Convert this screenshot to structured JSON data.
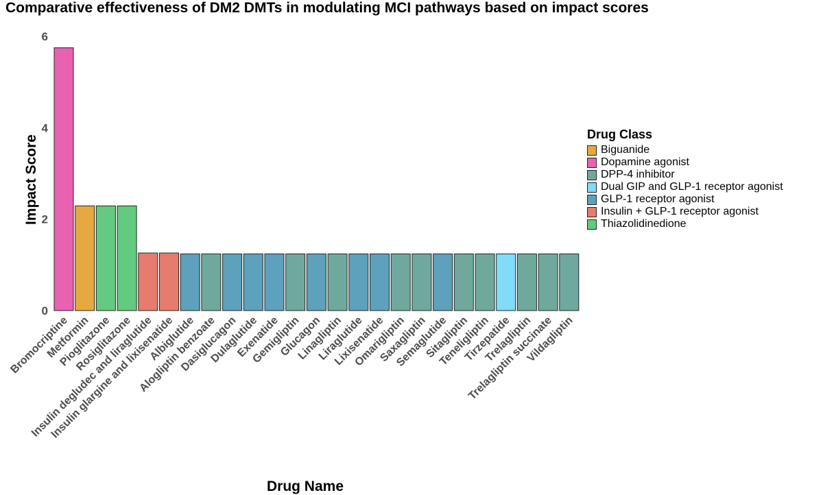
{
  "chart_data": {
    "type": "bar",
    "title": "Comparative effectiveness of DM2 DMTs in modulating MCI pathways based on impact scores",
    "xlabel": "Drug Name",
    "ylabel": "Impact Score",
    "ylim": [
      0,
      6
    ],
    "yticks": [
      "0",
      "2",
      "4",
      "6"
    ],
    "grid": false,
    "legend_position": "right",
    "legend_title": "Drug Class",
    "classes": [
      {
        "name": "Biguanide",
        "color": "#E5A93F"
      },
      {
        "name": "Dopamine agonist",
        "color": "#E962B1"
      },
      {
        "name": "DPP-4 inhibitor",
        "color": "#6FA99E"
      },
      {
        "name": "Dual GIP and GLP-1 receptor agonist",
        "color": "#80DCF7"
      },
      {
        "name": "GLP-1 receptor agonist",
        "color": "#5DA1BC"
      },
      {
        "name": "Insulin + GLP-1 receptor agonist",
        "color": "#E57C6D"
      },
      {
        "name": "Thiazolidinedione",
        "color": "#63CA7F"
      }
    ],
    "categories": [
      "Bromocriptine",
      "Metformin",
      "Pioglitazone",
      "Rosiglitazone",
      "Insulin degludec and liraglutide",
      "Insulin glargine and lixisenatide",
      "Albiglutide",
      "Alogliptin benzoate",
      "Dasiglucagon",
      "Dulaglutide",
      "Exenatide",
      "Gemigliptin",
      "Glucagon",
      "Linagliptin",
      "Liraglutide",
      "Lixisenatide",
      "Omarigliptin",
      "Saxagliptin",
      "Semaglutide",
      "Sitagliptin",
      "Teneligliptin",
      "Tirzepatide",
      "Trelagliptin",
      "Trelagliptin succinate",
      "Vildagliptin"
    ],
    "values": [
      5.75,
      2.29,
      2.29,
      2.29,
      1.26,
      1.26,
      1.24,
      1.24,
      1.24,
      1.24,
      1.24,
      1.24,
      1.24,
      1.24,
      1.24,
      1.24,
      1.24,
      1.24,
      1.24,
      1.24,
      1.24,
      1.24,
      1.24,
      1.24,
      1.24
    ],
    "class_of_bar": [
      "Dopamine agonist",
      "Biguanide",
      "Thiazolidinedione",
      "Thiazolidinedione",
      "Insulin + GLP-1 receptor agonist",
      "Insulin + GLP-1 receptor agonist",
      "GLP-1 receptor agonist",
      "DPP-4 inhibitor",
      "GLP-1 receptor agonist",
      "GLP-1 receptor agonist",
      "GLP-1 receptor agonist",
      "DPP-4 inhibitor",
      "GLP-1 receptor agonist",
      "DPP-4 inhibitor",
      "GLP-1 receptor agonist",
      "GLP-1 receptor agonist",
      "DPP-4 inhibitor",
      "DPP-4 inhibitor",
      "GLP-1 receptor agonist",
      "DPP-4 inhibitor",
      "DPP-4 inhibitor",
      "Dual GIP and GLP-1 receptor agonist",
      "DPP-4 inhibitor",
      "DPP-4 inhibitor",
      "DPP-4 inhibitor"
    ]
  }
}
